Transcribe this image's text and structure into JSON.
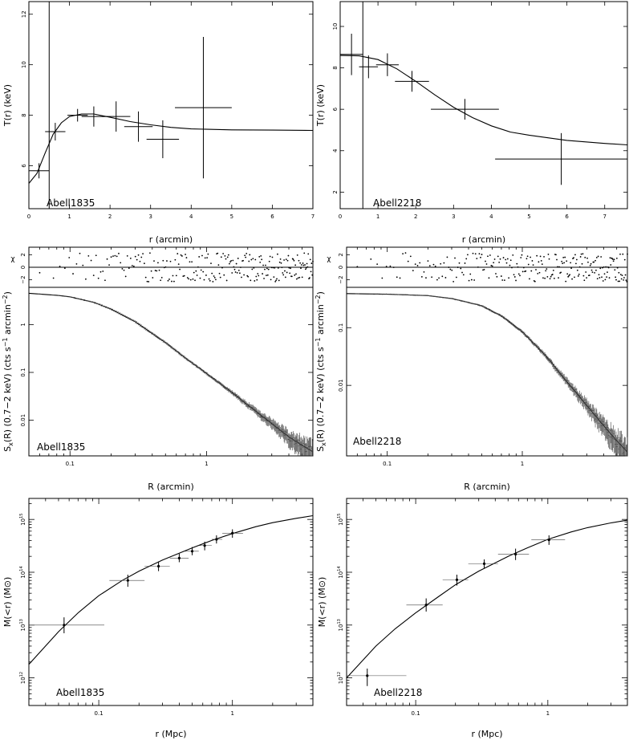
{
  "chart_data": [
    {
      "id": "t_a1835",
      "type": "scatter",
      "cluster_label": "Abell1835",
      "xlabel": "r (arcmin)",
      "ylabel": "T(r) (keV)",
      "xlim": [
        0,
        7
      ],
      "ylim": [
        4.3,
        12.5
      ],
      "x_ticks": [
        "0",
        "1",
        "2",
        "3",
        "4",
        "5",
        "6",
        "7"
      ],
      "y_ticks": [
        "6",
        "8",
        "10",
        "12"
      ],
      "vline_x": 0.5,
      "points": [
        {
          "x": 0.25,
          "xerr": 0.25,
          "y": 5.8,
          "yerr": 0.3
        },
        {
          "x": 0.65,
          "xerr": 0.25,
          "y": 7.35,
          "yerr": 0.35
        },
        {
          "x": 1.2,
          "xerr": 0.25,
          "y": 8.0,
          "yerr": 0.25
        },
        {
          "x": 1.6,
          "xerr": 0.3,
          "y": 7.95,
          "yerr": 0.4
        },
        {
          "x": 2.15,
          "xerr": 0.35,
          "y": 7.95,
          "yerr": 0.6
        },
        {
          "x": 2.7,
          "xerr": 0.35,
          "y": 7.55,
          "yerr": 0.6
        },
        {
          "x": 3.3,
          "xerr": 0.4,
          "y": 7.05,
          "yerr": 0.75
        },
        {
          "x": 4.3,
          "xerr": 0.7,
          "y": 8.3,
          "yerr": 2.8
        }
      ],
      "model": [
        [
          0,
          5.3
        ],
        [
          0.2,
          5.7
        ],
        [
          0.4,
          6.5
        ],
        [
          0.6,
          7.25
        ],
        [
          0.8,
          7.7
        ],
        [
          1.0,
          7.95
        ],
        [
          1.3,
          8.05
        ],
        [
          1.6,
          8.05
        ],
        [
          2.0,
          7.92
        ],
        [
          2.5,
          7.75
        ],
        [
          3.0,
          7.62
        ],
        [
          3.5,
          7.52
        ],
        [
          4.0,
          7.46
        ],
        [
          5.0,
          7.42
        ],
        [
          6.0,
          7.41
        ],
        [
          7.0,
          7.4
        ]
      ]
    },
    {
      "id": "t_a2218",
      "type": "scatter",
      "cluster_label": "Abell2218",
      "xlabel": "r (arcmin)",
      "ylabel": "T(r) (keV)",
      "xlim": [
        0,
        7.6
      ],
      "ylim": [
        1.2,
        11.2
      ],
      "x_ticks": [
        "0",
        "1",
        "2",
        "3",
        "4",
        "5",
        "6",
        "7"
      ],
      "y_ticks": [
        "2",
        "4",
        "6",
        "8",
        "10"
      ],
      "vline_x": 0.6,
      "points": [
        {
          "x": 0.3,
          "xerr": 0.3,
          "y": 8.65,
          "yerr": 1.0
        },
        {
          "x": 0.75,
          "xerr": 0.25,
          "y": 8.05,
          "yerr": 0.55
        },
        {
          "x": 1.25,
          "xerr": 0.3,
          "y": 8.15,
          "yerr": 0.55
        },
        {
          "x": 1.9,
          "xerr": 0.45,
          "y": 7.35,
          "yerr": 0.5
        },
        {
          "x": 3.3,
          "xerr": 0.9,
          "y": 6.0,
          "yerr": 0.5
        },
        {
          "x": 5.85,
          "xerr": 1.75,
          "y": 3.6,
          "yerr": 1.25
        }
      ],
      "model": [
        [
          0,
          8.6
        ],
        [
          0.5,
          8.58
        ],
        [
          1.0,
          8.4
        ],
        [
          1.5,
          7.95
        ],
        [
          2.0,
          7.35
        ],
        [
          2.5,
          6.7
        ],
        [
          3.0,
          6.1
        ],
        [
          3.5,
          5.6
        ],
        [
          4.0,
          5.2
        ],
        [
          4.5,
          4.9
        ],
        [
          5.0,
          4.75
        ],
        [
          6.0,
          4.5
        ],
        [
          7.0,
          4.35
        ],
        [
          7.6,
          4.28
        ]
      ]
    },
    {
      "id": "sx_a1835",
      "type": "scatter",
      "cluster_label": "Abell1835",
      "xlabel": "R (arcmin)",
      "ylabel": "S_x(R) (0.7−2 keV) (cts s^−1 arcmin^−2)",
      "ylabel_main": "S",
      "ylabel_sub": "x",
      "ylabel_rest": "(R) (0.7−2 keV) (cts s",
      "ylabel_sup1": "−1",
      "ylabel_mid": " arcmin",
      "ylabel_sup2": "−2",
      "ylabel_end": ")",
      "resid_label": "χ",
      "resid_ticks": [
        "2",
        "0",
        "−2"
      ],
      "xscale": "log",
      "yscale": "log",
      "xlim": [
        0.05,
        6
      ],
      "ylim": [
        0.0018,
        6
      ],
      "x_ticks": [
        "0.1",
        "1"
      ],
      "y_ticks": [
        "1",
        "0.1",
        "0.01"
      ],
      "model": [
        [
          0.05,
          4.5
        ],
        [
          0.08,
          4.1
        ],
        [
          0.1,
          3.8
        ],
        [
          0.15,
          2.9
        ],
        [
          0.2,
          2.1
        ],
        [
          0.3,
          1.15
        ],
        [
          0.4,
          0.65
        ],
        [
          0.5,
          0.42
        ],
        [
          0.7,
          0.2
        ],
        [
          1.0,
          0.095
        ],
        [
          1.5,
          0.04
        ],
        [
          2.0,
          0.021
        ],
        [
          3.0,
          0.0085
        ],
        [
          4.0,
          0.0045
        ],
        [
          5.0,
          0.003
        ],
        [
          6.0,
          0.0022
        ]
      ]
    },
    {
      "id": "sx_a2218",
      "type": "scatter",
      "cluster_label": "Abell2218",
      "xlabel": "R (arcmin)",
      "ylabel": "S_x(R) (0.7−2 keV) (cts s^−1 arcmin^−2)",
      "ylabel_main": "S",
      "ylabel_sub": "x",
      "ylabel_rest": "(R) (0.7−2 keV) (cts s",
      "ylabel_sup1": "−1",
      "ylabel_mid": " arcmin",
      "ylabel_sup2": "−2",
      "ylabel_end": ")",
      "resid_label": "χ",
      "resid_ticks": [
        "2",
        "0",
        "−2"
      ],
      "xscale": "log",
      "yscale": "log",
      "xlim": [
        0.05,
        6
      ],
      "ylim": [
        0.0006,
        0.5
      ],
      "x_ticks": [
        "0.1",
        "1"
      ],
      "y_ticks": [
        "0.1",
        "0.01"
      ],
      "model": [
        [
          0.05,
          0.39
        ],
        [
          0.1,
          0.38
        ],
        [
          0.2,
          0.36
        ],
        [
          0.3,
          0.32
        ],
        [
          0.5,
          0.24
        ],
        [
          0.7,
          0.16
        ],
        [
          1.0,
          0.085
        ],
        [
          1.5,
          0.032
        ],
        [
          2.0,
          0.014
        ],
        [
          2.5,
          0.0075
        ],
        [
          3.0,
          0.0045
        ],
        [
          4.0,
          0.002
        ],
        [
          5.0,
          0.0011
        ],
        [
          6.0,
          0.0007
        ]
      ]
    },
    {
      "id": "m_a1835",
      "type": "scatter",
      "cluster_label": "Abell1835",
      "xlabel": "r (Mpc)",
      "ylabel_main": "M(<r) (M",
      "ylabel_sym": "⊙",
      "ylabel_end": ")",
      "xscale": "log",
      "yscale": "log",
      "xlim": [
        0.03,
        4
      ],
      "ylim": [
        300000000000.0,
        2500000000000000.0
      ],
      "x_ticks": [
        "0.1",
        "1"
      ],
      "y_ticks": [
        {
          "base": "10",
          "exp": "15",
          "v": 1000000000000000.0
        },
        {
          "base": "10",
          "exp": "14",
          "v": 100000000000000.0
        },
        {
          "base": "10",
          "exp": "13",
          "v": 10000000000000.0
        },
        {
          "base": "10",
          "exp": "12",
          "v": 1000000000000.0
        }
      ],
      "points": [
        {
          "x": 0.055,
          "xlo": 0.03,
          "xhi": 0.11,
          "y": 10000000000000.0,
          "ylo": 7000000000000.0,
          "yhi": 14000000000000.0
        },
        {
          "x": 0.165,
          "xlo": 0.12,
          "xhi": 0.22,
          "y": 70000000000000.0,
          "ylo": 53000000000000.0,
          "yhi": 90000000000000.0
        },
        {
          "x": 0.28,
          "xlo": 0.22,
          "xhi": 0.34,
          "y": 130000000000000.0,
          "ylo": 105000000000000.0,
          "yhi": 160000000000000.0
        },
        {
          "x": 0.4,
          "xlo": 0.34,
          "xhi": 0.47,
          "y": 185000000000000.0,
          "ylo": 155000000000000.0,
          "yhi": 225000000000000.0
        },
        {
          "x": 0.5,
          "xlo": 0.44,
          "xhi": 0.56,
          "y": 250000000000000.0,
          "ylo": 210000000000000.0,
          "yhi": 300000000000000.0
        },
        {
          "x": 0.62,
          "xlo": 0.56,
          "xhi": 0.7,
          "y": 320000000000000.0,
          "ylo": 260000000000000.0,
          "yhi": 380000000000000.0
        },
        {
          "x": 0.76,
          "xlo": 0.7,
          "xhi": 0.84,
          "y": 420000000000000.0,
          "ylo": 350000000000000.0,
          "yhi": 500000000000000.0
        },
        {
          "x": 1.0,
          "xlo": 0.84,
          "xhi": 1.2,
          "y": 550000000000000.0,
          "ylo": 450000000000000.0,
          "yhi": 650000000000000.0
        }
      ],
      "model": [
        [
          0.03,
          1800000000000.0
        ],
        [
          0.05,
          7500000000000.0
        ],
        [
          0.07,
          17000000000000.0
        ],
        [
          0.1,
          36000000000000.0
        ],
        [
          0.15,
          70000000000000.0
        ],
        [
          0.2,
          105000000000000.0
        ],
        [
          0.3,
          170000000000000.0
        ],
        [
          0.5,
          290000000000000.0
        ],
        [
          0.7,
          400000000000000.0
        ],
        [
          1.0,
          540000000000000.0
        ],
        [
          1.5,
          730000000000000.0
        ],
        [
          2.0,
          870000000000000.0
        ],
        [
          3.0,
          1050000000000000.0
        ],
        [
          4.0,
          1180000000000000.0
        ]
      ]
    },
    {
      "id": "m_a2218",
      "type": "scatter",
      "cluster_label": "Abell2218",
      "xlabel": "r (Mpc)",
      "ylabel_main": "M(<r) (M",
      "ylabel_sym": "⊙",
      "ylabel_end": ")",
      "xscale": "log",
      "yscale": "log",
      "xlim": [
        0.03,
        4
      ],
      "ylim": [
        300000000000.0,
        2500000000000000.0
      ],
      "x_ticks": [
        "0.1",
        "1"
      ],
      "y_ticks": [
        {
          "base": "10",
          "exp": "15",
          "v": 1000000000000000.0
        },
        {
          "base": "10",
          "exp": "14",
          "v": 100000000000000.0
        },
        {
          "base": "10",
          "exp": "13",
          "v": 10000000000000.0
        },
        {
          "base": "10",
          "exp": "12",
          "v": 1000000000000.0
        }
      ],
      "points": [
        {
          "x": 0.043,
          "xlo": 0.03,
          "xhi": 0.085,
          "y": 1100000000000.0,
          "ylo": 700000000000.0,
          "yhi": 1500000000000.0
        },
        {
          "x": 0.12,
          "xlo": 0.085,
          "xhi": 0.16,
          "y": 24000000000000.0,
          "ylo": 18000000000000.0,
          "yhi": 32000000000000.0
        },
        {
          "x": 0.205,
          "xlo": 0.16,
          "xhi": 0.25,
          "y": 72000000000000.0,
          "ylo": 56000000000000.0,
          "yhi": 90000000000000.0
        },
        {
          "x": 0.33,
          "xlo": 0.25,
          "xhi": 0.42,
          "y": 145000000000000.0,
          "ylo": 120000000000000.0,
          "yhi": 175000000000000.0
        },
        {
          "x": 0.57,
          "xlo": 0.42,
          "xhi": 0.72,
          "y": 220000000000000.0,
          "ylo": 170000000000000.0,
          "yhi": 280000000000000.0
        },
        {
          "x": 1.02,
          "xlo": 0.75,
          "xhi": 1.35,
          "y": 410000000000000.0,
          "ylo": 330000000000000.0,
          "yhi": 500000000000000.0
        }
      ],
      "model": [
        [
          0.03,
          1000000000000.0
        ],
        [
          0.05,
          4000000000000.0
        ],
        [
          0.07,
          8500000000000.0
        ],
        [
          0.1,
          17000000000000.0
        ],
        [
          0.15,
          35000000000000.0
        ],
        [
          0.2,
          58000000000000.0
        ],
        [
          0.3,
          105000000000000.0
        ],
        [
          0.5,
          200000000000000.0
        ],
        [
          0.7,
          290000000000000.0
        ],
        [
          1.0,
          420000000000000.0
        ],
        [
          1.5,
          580000000000000.0
        ],
        [
          2.0,
          700000000000000.0
        ],
        [
          3.0,
          860000000000000.0
        ],
        [
          4.0,
          970000000000000.0
        ]
      ]
    }
  ]
}
